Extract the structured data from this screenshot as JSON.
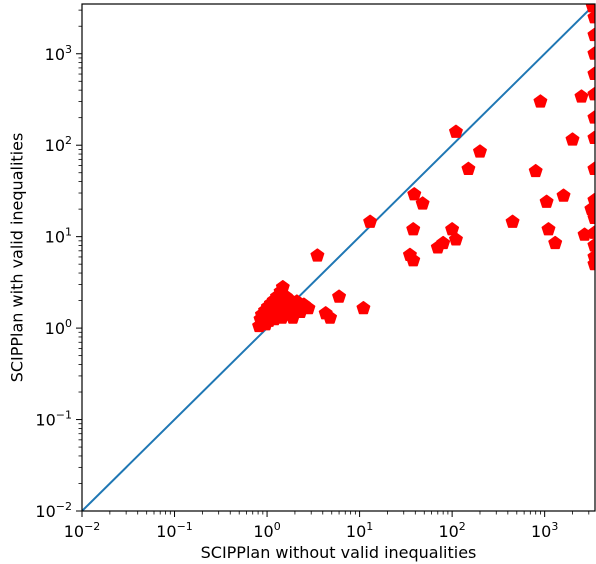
{
  "chart_data": {
    "type": "scatter",
    "title": "",
    "xlabel": "SCIPPlan without valid inequalities",
    "ylabel": "SCIPPlan with valid inequalities",
    "xscale": "log",
    "yscale": "log",
    "xlim": [
      0.01,
      3500
    ],
    "ylim": [
      0.01,
      3500
    ],
    "grid": false,
    "legend": "none",
    "x_ticks": [
      0.01,
      0.1,
      1,
      10,
      100,
      1000
    ],
    "y_ticks": [
      0.01,
      0.1,
      1,
      10,
      100,
      1000
    ],
    "x_tick_labels": [
      {
        "base": "10",
        "exp": "−2"
      },
      {
        "base": "10",
        "exp": "−1"
      },
      {
        "base": "10",
        "exp": "0"
      },
      {
        "base": "10",
        "exp": "1"
      },
      {
        "base": "10",
        "exp": "2"
      },
      {
        "base": "10",
        "exp": "3"
      }
    ],
    "y_tick_labels": [
      {
        "base": "10",
        "exp": "−2"
      },
      {
        "base": "10",
        "exp": "−1"
      },
      {
        "base": "10",
        "exp": "0"
      },
      {
        "base": "10",
        "exp": "1"
      },
      {
        "base": "10",
        "exp": "2"
      },
      {
        "base": "10",
        "exp": "3"
      }
    ],
    "colors": {
      "points": "#ff0000",
      "diagonal": "#1f77b4",
      "axes": "#000000"
    },
    "marker": "pentagon",
    "reference_line": {
      "type": "identity",
      "from": 0.01,
      "to": 3500
    },
    "points": [
      {
        "x": 0.82,
        "y": 1.05
      },
      {
        "x": 0.85,
        "y": 1.25
      },
      {
        "x": 0.88,
        "y": 1.4
      },
      {
        "x": 0.9,
        "y": 1.15
      },
      {
        "x": 0.92,
        "y": 1.3
      },
      {
        "x": 0.95,
        "y": 1.55
      },
      {
        "x": 0.97,
        "y": 1.1
      },
      {
        "x": 1.0,
        "y": 1.35
      },
      {
        "x": 1.02,
        "y": 1.7
      },
      {
        "x": 1.05,
        "y": 1.2
      },
      {
        "x": 1.08,
        "y": 1.5
      },
      {
        "x": 1.1,
        "y": 1.85
      },
      {
        "x": 1.12,
        "y": 1.3
      },
      {
        "x": 1.15,
        "y": 1.6
      },
      {
        "x": 1.18,
        "y": 2.0
      },
      {
        "x": 1.2,
        "y": 1.25
      },
      {
        "x": 1.22,
        "y": 1.45
      },
      {
        "x": 1.25,
        "y": 1.75
      },
      {
        "x": 1.28,
        "y": 2.2
      },
      {
        "x": 1.3,
        "y": 1.35
      },
      {
        "x": 1.33,
        "y": 1.6
      },
      {
        "x": 1.36,
        "y": 1.9
      },
      {
        "x": 1.4,
        "y": 2.5
      },
      {
        "x": 1.45,
        "y": 1.3
      },
      {
        "x": 1.48,
        "y": 2.8
      },
      {
        "x": 1.5,
        "y": 1.55
      },
      {
        "x": 1.55,
        "y": 1.85
      },
      {
        "x": 1.6,
        "y": 2.2
      },
      {
        "x": 1.65,
        "y": 1.4
      },
      {
        "x": 1.7,
        "y": 1.7
      },
      {
        "x": 1.8,
        "y": 2.0
      },
      {
        "x": 1.9,
        "y": 1.3
      },
      {
        "x": 2.0,
        "y": 1.6
      },
      {
        "x": 2.1,
        "y": 1.95
      },
      {
        "x": 2.3,
        "y": 1.5
      },
      {
        "x": 2.5,
        "y": 1.8
      },
      {
        "x": 2.8,
        "y": 1.65
      },
      {
        "x": 3.5,
        "y": 6.2
      },
      {
        "x": 4.3,
        "y": 1.45
      },
      {
        "x": 4.8,
        "y": 1.3
      },
      {
        "x": 6.0,
        "y": 2.2
      },
      {
        "x": 11.0,
        "y": 1.65
      },
      {
        "x": 13.0,
        "y": 14.5
      },
      {
        "x": 35.0,
        "y": 6.3
      },
      {
        "x": 38.0,
        "y": 5.5
      },
      {
        "x": 38.0,
        "y": 12.0
      },
      {
        "x": 39.0,
        "y": 29.0
      },
      {
        "x": 48.0,
        "y": 23.0
      },
      {
        "x": 70.0,
        "y": 7.6
      },
      {
        "x": 80.0,
        "y": 8.5
      },
      {
        "x": 100.0,
        "y": 12.0
      },
      {
        "x": 110.0,
        "y": 9.3
      },
      {
        "x": 110.0,
        "y": 140.0
      },
      {
        "x": 150.0,
        "y": 55.0
      },
      {
        "x": 200.0,
        "y": 85.0
      },
      {
        "x": 450.0,
        "y": 14.5
      },
      {
        "x": 800.0,
        "y": 52.0
      },
      {
        "x": 900.0,
        "y": 300.0
      },
      {
        "x": 1050.0,
        "y": 24.0
      },
      {
        "x": 1100.0,
        "y": 12.0
      },
      {
        "x": 1300.0,
        "y": 8.5
      },
      {
        "x": 1600.0,
        "y": 28.0
      },
      {
        "x": 2000.0,
        "y": 115.0
      },
      {
        "x": 2500.0,
        "y": 340.0
      },
      {
        "x": 2700.0,
        "y": 10.5
      },
      {
        "x": 3200.0,
        "y": 20.0
      },
      {
        "x": 3300.0,
        "y": 3300.0
      },
      {
        "x": 3450.0,
        "y": 2500.0
      },
      {
        "x": 3450.0,
        "y": 1600.0
      },
      {
        "x": 3450.0,
        "y": 1000.0
      },
      {
        "x": 3450.0,
        "y": 600.0
      },
      {
        "x": 3450.0,
        "y": 360.0
      },
      {
        "x": 3450.0,
        "y": 200.0
      },
      {
        "x": 3450.0,
        "y": 120.0
      },
      {
        "x": 3450.0,
        "y": 55.0
      },
      {
        "x": 3450.0,
        "y": 25.0
      },
      {
        "x": 3450.0,
        "y": 16.0
      },
      {
        "x": 3450.0,
        "y": 11.0
      },
      {
        "x": 3450.0,
        "y": 8.0
      },
      {
        "x": 3450.0,
        "y": 6.0
      },
      {
        "x": 3450.0,
        "y": 5.0
      }
    ]
  }
}
